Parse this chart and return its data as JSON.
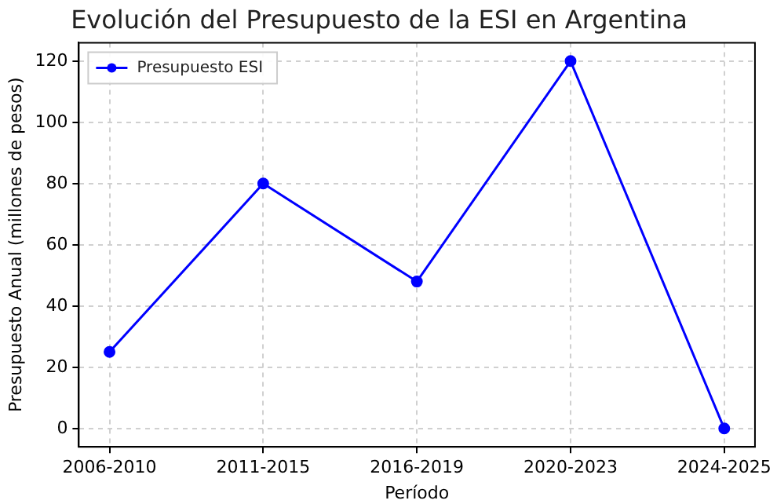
{
  "chart_data": {
    "type": "line",
    "title": "Evolución del Presupuesto de la ESI en Argentina",
    "xlabel": "Período",
    "ylabel": "Presupuesto Anual (millones de pesos)",
    "categories": [
      "2006-2010",
      "2011-2015",
      "2016-2019",
      "2020-2023",
      "2024-2025"
    ],
    "series": [
      {
        "name": "Presupuesto ESI",
        "color": "#0000ff",
        "values": [
          25,
          80,
          48,
          120,
          0
        ]
      }
    ],
    "ylim": [
      -6,
      126
    ],
    "yticks": [
      0,
      20,
      40,
      60,
      80,
      100,
      120
    ],
    "grid": true,
    "legend": "top left",
    "marker": "circle",
    "line_style": "solid"
  }
}
